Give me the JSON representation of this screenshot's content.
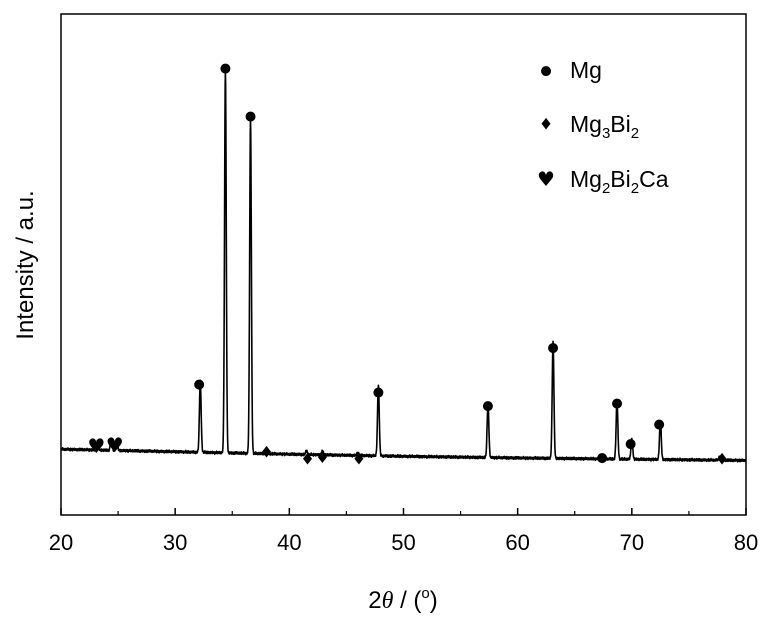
{
  "chart_data": {
    "type": "line",
    "xlabel": {
      "prefix": "2",
      "symbol": "θ",
      "unit_open": " / (",
      "unit_sup": "o",
      "unit_close": ")"
    },
    "ylabel": "Intensity / a.u.",
    "xlim": [
      20,
      80
    ],
    "xticks": [
      "20",
      "30",
      "40",
      "50",
      "60",
      "70",
      "80"
    ],
    "ylim": [
      0,
      100
    ],
    "y_ticks_labeled": false,
    "grid": false,
    "line_color": "#000000",
    "baseline": {
      "x": [
        20,
        30,
        40,
        50,
        60,
        70,
        80
      ],
      "y": [
        7.4,
        6.8,
        6.2,
        5.7,
        5.3,
        5.0,
        4.7
      ]
    },
    "peaks": [
      {
        "x": 23.2,
        "height": 2.3
      },
      {
        "x": 24.4,
        "height": 2.6
      },
      {
        "x": 24.9,
        "height": 1.3
      },
      {
        "x": 32.2,
        "height": 17.0
      },
      {
        "x": 34.4,
        "height": 92.0
      },
      {
        "x": 36.6,
        "height": 80.0
      },
      {
        "x": 38.0,
        "height": 0.8
      },
      {
        "x": 41.5,
        "height": 0.9
      },
      {
        "x": 42.9,
        "height": 0.9
      },
      {
        "x": 46.0,
        "height": 0.7
      },
      {
        "x": 47.8,
        "height": 17.0
      },
      {
        "x": 57.4,
        "height": 13.0
      },
      {
        "x": 63.1,
        "height": 28.0
      },
      {
        "x": 67.4,
        "height": 0.8
      },
      {
        "x": 68.7,
        "height": 14.0
      },
      {
        "x": 70.0,
        "height": 5.0
      },
      {
        "x": 72.5,
        "height": 9.5
      },
      {
        "x": 77.7,
        "height": 0.9
      }
    ],
    "markers": [
      {
        "phase": "Mg",
        "symbol": "●",
        "x": 32.1,
        "y": 23.2
      },
      {
        "phase": "Mg",
        "symbol": "●",
        "x": 34.4,
        "y": 99.2
      },
      {
        "phase": "Mg",
        "symbol": "●",
        "x": 36.6,
        "y": 87.6
      },
      {
        "phase": "Mg",
        "symbol": "●",
        "x": 47.8,
        "y": 21.3
      },
      {
        "phase": "Mg",
        "symbol": "●",
        "x": 57.4,
        "y": 18.1
      },
      {
        "phase": "Mg",
        "symbol": "●",
        "x": 63.1,
        "y": 32.0
      },
      {
        "phase": "Mg",
        "symbol": "●",
        "x": 67.4,
        "y": 5.6
      },
      {
        "phase": "Mg",
        "symbol": "●",
        "x": 68.7,
        "y": 18.6
      },
      {
        "phase": "Mg",
        "symbol": "●",
        "x": 69.9,
        "y": 8.9
      },
      {
        "phase": "Mg",
        "symbol": "●",
        "x": 72.4,
        "y": 13.6
      },
      {
        "phase": "Mg3Bi2",
        "symbol": "♦",
        "x": 38.0,
        "y": 6.7
      },
      {
        "phase": "Mg3Bi2",
        "symbol": "♦",
        "x": 41.6,
        "y": 5.1
      },
      {
        "phase": "Mg3Bi2",
        "symbol": "♦",
        "x": 42.9,
        "y": 5.4
      },
      {
        "phase": "Mg3Bi2",
        "symbol": "♦",
        "x": 46.1,
        "y": 5.1
      },
      {
        "phase": "Mg3Bi2",
        "symbol": "♦",
        "x": 77.9,
        "y": 5.1
      },
      {
        "phase": "Mg2Bi2Ca",
        "symbol": "♥",
        "x": 23.1,
        "y": 8.2
      },
      {
        "phase": "Mg2Bi2Ca",
        "symbol": "♥",
        "x": 24.7,
        "y": 8.4
      }
    ],
    "legend": {
      "placement": "top-right",
      "entries": [
        {
          "symbol": "●",
          "parts": [
            {
              "t": "Mg",
              "sub": false
            }
          ]
        },
        {
          "symbol": "♦",
          "parts": [
            {
              "t": "Mg",
              "sub": false
            },
            {
              "t": "3",
              "sub": true
            },
            {
              "t": "Bi",
              "sub": false
            },
            {
              "t": "2",
              "sub": true
            }
          ]
        },
        {
          "symbol": "♥",
          "parts": [
            {
              "t": "Mg",
              "sub": false
            },
            {
              "t": "2",
              "sub": true
            },
            {
              "t": "Bi",
              "sub": false
            },
            {
              "t": "2",
              "sub": true
            },
            {
              "t": "Ca",
              "sub": false
            }
          ]
        }
      ]
    }
  }
}
